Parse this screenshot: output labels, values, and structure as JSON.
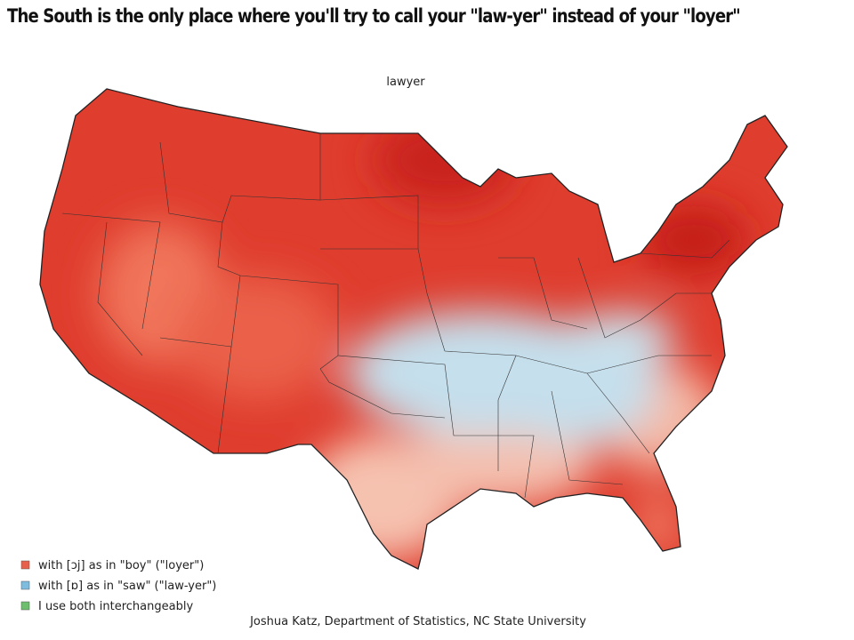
{
  "title": "The South is the only place where you'll try to call your \"law-yer\" instead of your \"loyer\"",
  "map": {
    "title": "lawyer",
    "legend": [
      {
        "label": "with [ɔj] as in \"boy\" (\"loyer\")",
        "color": "#e8604c"
      },
      {
        "label": "with [ɒ] as in \"saw\" (\"law-yer\")",
        "color": "#7fbde0"
      },
      {
        "label": "I use both interchangeably",
        "color": "#6cbf6c"
      }
    ],
    "credit": "Joshua Katz, Department of Statistics, NC State University"
  }
}
